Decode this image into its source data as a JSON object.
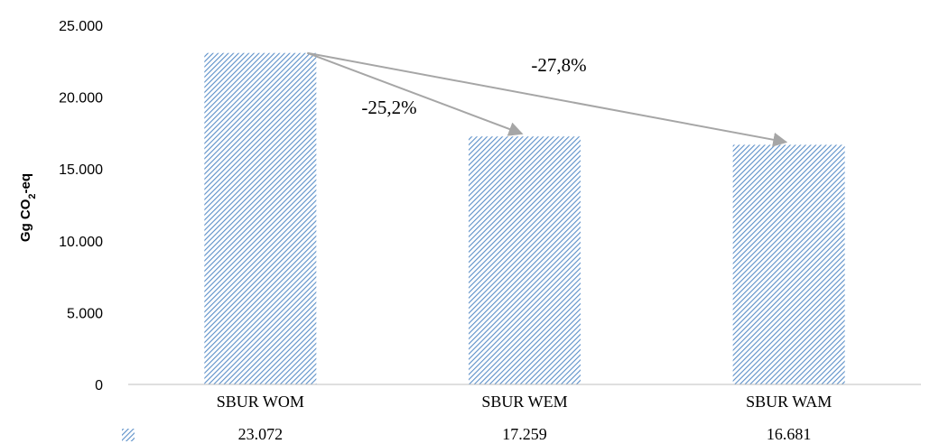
{
  "chart_data": {
    "type": "bar",
    "categories": [
      "SBUR WOM",
      "SBUR WEM",
      "SBUR WAM"
    ],
    "values": [
      23072,
      17259,
      16681
    ],
    "value_labels": [
      "23.072",
      "17.259",
      "16.681"
    ],
    "ylabel_main": "Gg CO",
    "ylabel_sub": "2",
    "ylabel_suffix": "-eq",
    "ylim": [
      0,
      25000
    ],
    "yticks": [
      0,
      5000,
      10000,
      15000,
      20000,
      25000
    ],
    "ytick_labels": [
      "0",
      "5.000",
      "10.000",
      "15.000",
      "20.000",
      "25.000"
    ],
    "bar_color": "#5b8fc8",
    "arrow_color": "#a6a6a6",
    "legend": "data-table-below",
    "grid": false,
    "annotations": [
      {
        "text": "-25,2%",
        "from": 0,
        "to": 1
      },
      {
        "text": "-27,8%",
        "from": 0,
        "to": 2
      }
    ]
  }
}
